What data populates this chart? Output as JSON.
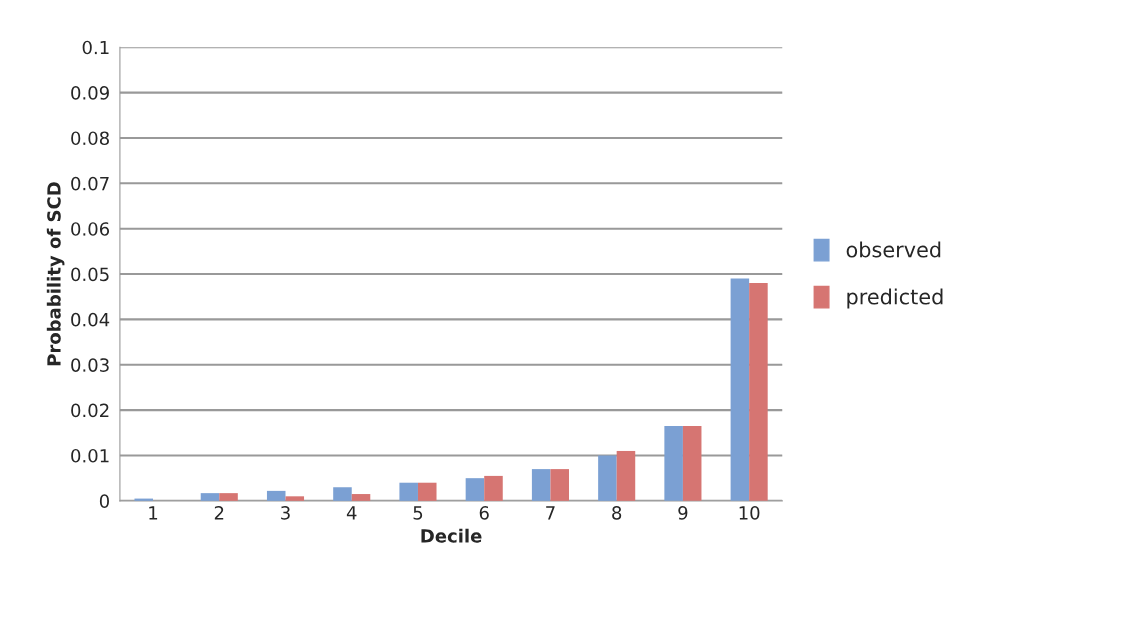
{
  "chart_data": {
    "type": "bar",
    "xlabel": "Decile",
    "ylabel": "Probability of SCD",
    "categories": [
      "1",
      "2",
      "3",
      "4",
      "5",
      "6",
      "7",
      "8",
      "9",
      "10"
    ],
    "series": [
      {
        "name": "observed",
        "color": "#7ba0d3",
        "values": [
          0.0005,
          0.0017,
          0.0022,
          0.003,
          0.004,
          0.005,
          0.007,
          0.01,
          0.0165,
          0.049
        ]
      },
      {
        "name": "predicted",
        "color": "#d67572",
        "values": [
          null,
          0.0017,
          0.001,
          0.0015,
          0.004,
          0.0055,
          0.007,
          0.011,
          0.0165,
          0.048
        ]
      }
    ],
    "ylim": [
      0,
      0.1
    ],
    "yticks": [
      {
        "value": 0,
        "label": "0"
      },
      0.01,
      0.02,
      0.03,
      0.04,
      0.05,
      0.06,
      0.07,
      0.08,
      0.09,
      0.1
    ],
    "grid": "y",
    "legend": "right"
  }
}
